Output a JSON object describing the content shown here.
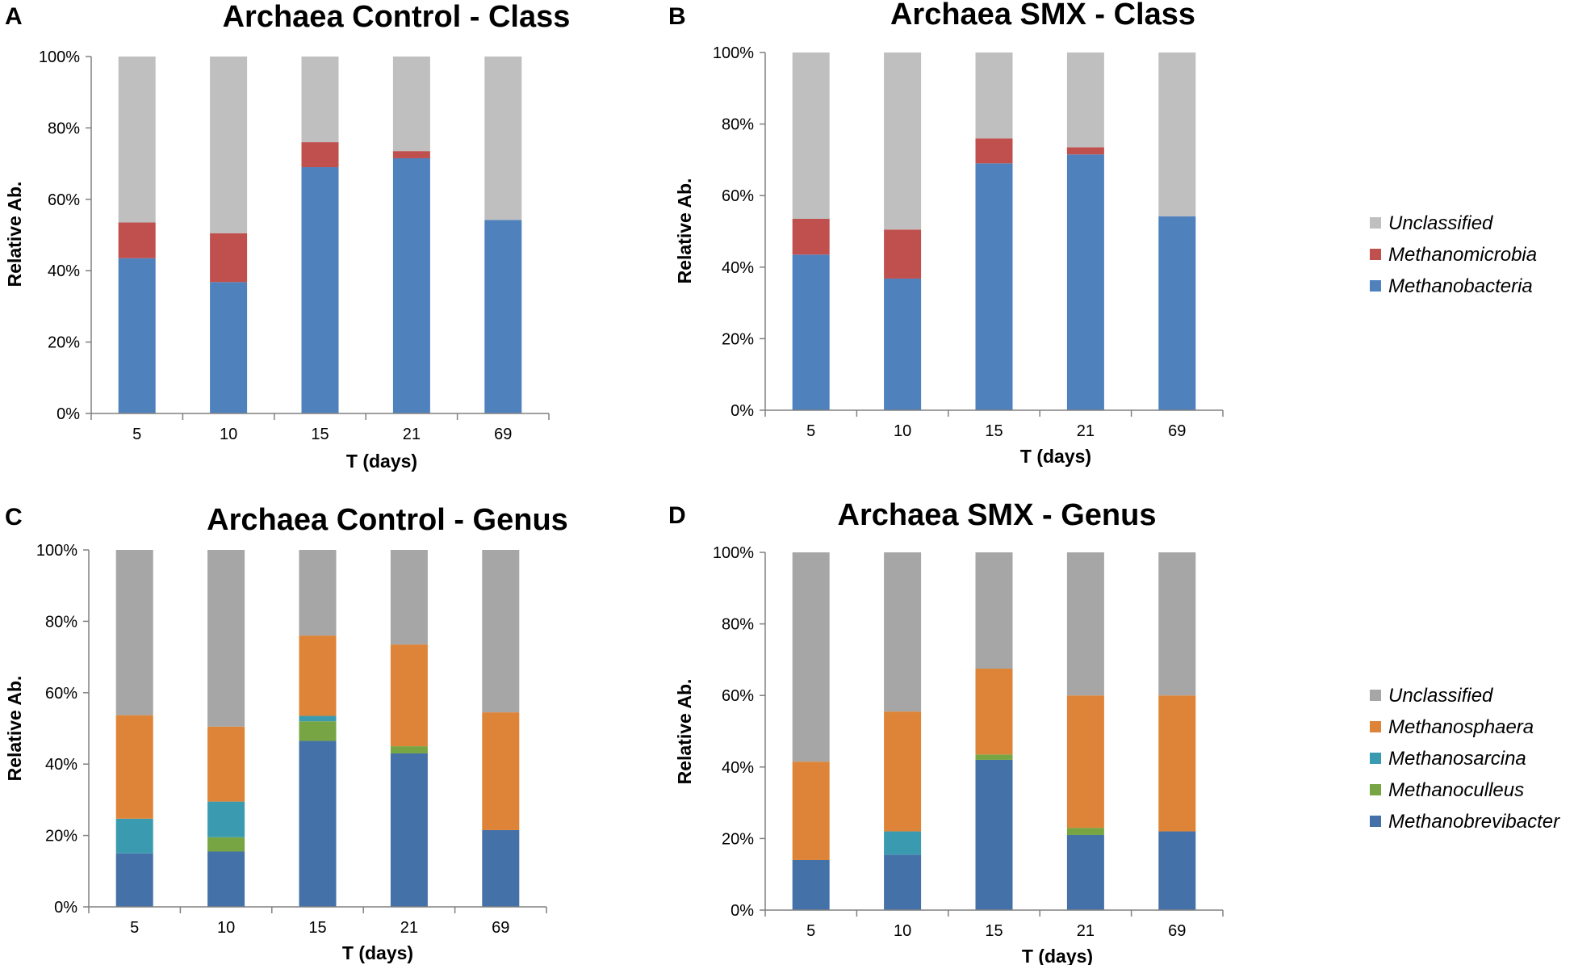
{
  "chart_data": [
    {
      "type": "bar",
      "stacked": true,
      "panel_label": "A",
      "title": "Archaea  Control - Class",
      "xlabel": "T (days)",
      "ylabel": "Relative Ab.",
      "categories": [
        "5",
        "10",
        "15",
        "21",
        "69"
      ],
      "yticks": [
        "0%",
        "20%",
        "40%",
        "60%",
        "80%",
        "100%"
      ],
      "ylim": [
        0,
        100
      ],
      "series": [
        {
          "name": "Methanobacteria",
          "color": "#4f81bd",
          "values": [
            43.5,
            36.8,
            69.0,
            71.5,
            54.2
          ]
        },
        {
          "name": "Methanomicrobia",
          "color": "#c0504d",
          "values": [
            10.0,
            13.7,
            7.0,
            2.0,
            0.0
          ]
        },
        {
          "name": "Unclassified",
          "color": "#bfbfbf",
          "values": [
            46.5,
            49.5,
            24.0,
            26.5,
            45.8
          ]
        }
      ]
    },
    {
      "type": "bar",
      "stacked": true,
      "panel_label": "B",
      "title": "Archaea  SMX - Class",
      "xlabel": "T (days)",
      "ylabel": "Relative Ab.",
      "categories": [
        "5",
        "10",
        "15",
        "21",
        "69"
      ],
      "yticks": [
        "0%",
        "20%",
        "40%",
        "60%",
        "80%",
        "100%"
      ],
      "ylim": [
        0,
        100
      ],
      "legend": [
        "Unclassified",
        "Methanomicrobia",
        "Methanobacteria"
      ],
      "series": [
        {
          "name": "Methanobacteria",
          "color": "#4f81bd",
          "values": [
            43.5,
            36.8,
            69.0,
            71.5,
            54.2
          ]
        },
        {
          "name": "Methanomicrobia",
          "color": "#c0504d",
          "values": [
            10.0,
            13.7,
            7.0,
            2.0,
            0.0
          ]
        },
        {
          "name": "Unclassified",
          "color": "#bfbfbf",
          "values": [
            46.5,
            49.5,
            24.0,
            26.5,
            45.8
          ]
        }
      ]
    },
    {
      "type": "bar",
      "stacked": true,
      "panel_label": "C",
      "title": "Archaea  Control - Genus",
      "xlabel": "T (days)",
      "ylabel": "Relative Ab.",
      "categories": [
        "5",
        "10",
        "15",
        "21",
        "69"
      ],
      "yticks": [
        "0%",
        "20%",
        "40%",
        "60%",
        "80%",
        "100%"
      ],
      "ylim": [
        0,
        100
      ],
      "series": [
        {
          "name": "Methanobrevibacter",
          "color": "#4472a8",
          "values": [
            15.0,
            15.5,
            46.5,
            43.0,
            21.5
          ]
        },
        {
          "name": "Methanoculleus",
          "color": "#77a543",
          "values": [
            0.0,
            4.0,
            5.5,
            2.0,
            0.0
          ]
        },
        {
          "name": "Methanosarcina",
          "color": "#3a9bb0",
          "values": [
            9.7,
            10.0,
            1.5,
            0.0,
            0.0
          ]
        },
        {
          "name": "Methanosphaera",
          "color": "#dd8438",
          "values": [
            29.0,
            21.0,
            22.5,
            28.5,
            33.0
          ]
        },
        {
          "name": "Unclassified",
          "color": "#a6a6a6",
          "values": [
            46.3,
            49.5,
            24.0,
            26.5,
            45.5
          ]
        }
      ]
    },
    {
      "type": "bar",
      "stacked": true,
      "panel_label": "D",
      "title": "Archaea  SMX - Genus",
      "xlabel": "T (days)",
      "ylabel": "Relative Ab.",
      "categories": [
        "5",
        "10",
        "15",
        "21",
        "69"
      ],
      "yticks": [
        "0%",
        "20%",
        "40%",
        "60%",
        "80%",
        "100%"
      ],
      "ylim": [
        0,
        100
      ],
      "legend": [
        "Unclassified",
        "Methanosphaera",
        "Methanosarcina",
        "Methanoculleus",
        "Methanobrevibacter"
      ],
      "series": [
        {
          "name": "Methanobrevibacter",
          "color": "#4472a8",
          "values": [
            14.0,
            15.5,
            42.0,
            21.0,
            22.0
          ]
        },
        {
          "name": "Methanoculleus",
          "color": "#77a543",
          "values": [
            0.0,
            0.0,
            1.5,
            2.0,
            0.0
          ]
        },
        {
          "name": "Methanosarcina",
          "color": "#3a9bb0",
          "values": [
            0.0,
            6.5,
            0.0,
            0.0,
            0.0
          ]
        },
        {
          "name": "Methanosphaera",
          "color": "#dd8438",
          "values": [
            27.5,
            33.5,
            24.0,
            37.0,
            38.0
          ]
        },
        {
          "name": "Unclassified",
          "color": "#a6a6a6",
          "values": [
            58.5,
            44.5,
            32.5,
            40.0,
            40.0
          ]
        }
      ]
    }
  ]
}
